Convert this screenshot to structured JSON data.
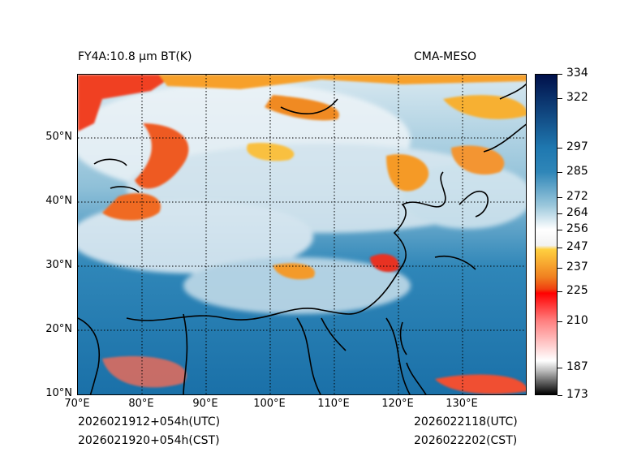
{
  "header": {
    "left_title": "FY4A:10.8 µm BT(K)",
    "right_title": "CMA-MESO"
  },
  "map": {
    "lat_labels": [
      "50°N",
      "40°N",
      "30°N",
      "20°N",
      "10°N"
    ],
    "lon_labels": [
      "70°E",
      "80°E",
      "90°E",
      "100°E",
      "110°E",
      "120°E",
      "130°E"
    ],
    "lat_range": [
      10,
      60
    ],
    "lon_range": [
      70,
      140
    ]
  },
  "colorbar": {
    "ticks": [
      "334",
      "322",
      "297",
      "285",
      "272",
      "264",
      "256",
      "247",
      "237",
      "225",
      "210",
      "187",
      "173"
    ],
    "range": [
      173,
      334
    ],
    "colors": {
      "cold": "#000000",
      "gray": "#bdbdbd",
      "pink": "#ff8080",
      "red": "#ff0000",
      "orange": "#f08020",
      "yellow": "#ffd040",
      "white": "#ffffff",
      "lightblue": "#9cc8dc",
      "blue": "#1f78b0",
      "navy": "#00104a"
    }
  },
  "footer": {
    "init_utc": "2026021912+054h(UTC)",
    "init_cst": "2026021920+054h(CST)",
    "valid_utc": "2026022118(UTC)",
    "valid_cst": "2026022202(CST)"
  }
}
